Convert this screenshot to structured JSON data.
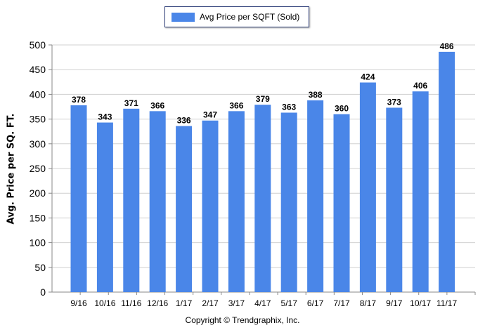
{
  "chart_data": {
    "type": "bar",
    "categories": [
      "9/16",
      "10/16",
      "11/16",
      "12/16",
      "1/17",
      "2/17",
      "3/17",
      "4/17",
      "5/17",
      "6/17",
      "7/17",
      "8/17",
      "9/17",
      "10/17",
      "11/17"
    ],
    "series": [
      {
        "name": "Avg Price per SQFT (Sold)",
        "values": [
          378,
          343,
          371,
          366,
          336,
          347,
          366,
          379,
          363,
          388,
          360,
          424,
          373,
          406,
          486
        ]
      }
    ],
    "data_labels": [
      "378",
      "343",
      "371",
      "366",
      "336",
      "347",
      "366",
      "379",
      "363",
      "388",
      "360",
      "424",
      "373",
      "406",
      "486"
    ],
    "ylabel": "Avg. Price per SQ. FT.",
    "xlabel": "",
    "ylim": [
      0,
      500
    ],
    "yticks": [
      "0",
      "50",
      "100",
      "150",
      "200",
      "250",
      "300",
      "350",
      "400",
      "450",
      "500"
    ],
    "grid": true,
    "legend_position": "top-center",
    "bar_color": "#4a86e8"
  },
  "footer": {
    "copyright": "Copyright © Trendgraphix, Inc."
  }
}
